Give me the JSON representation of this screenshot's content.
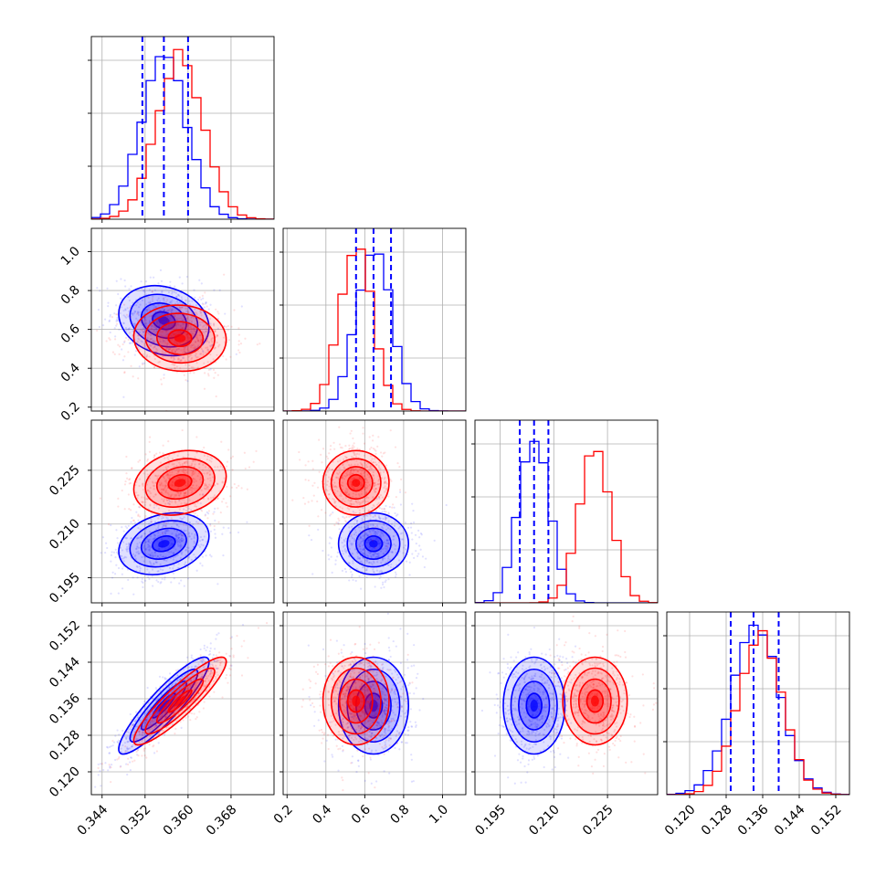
{
  "chart_data": {
    "type": "scatter",
    "plot_kind": "corner",
    "grid": true,
    "colors": {
      "blue": "#0000ff",
      "red": "#ff0000",
      "grid": "#b0b0b0",
      "frame": "#000000"
    },
    "parameters": [
      {
        "ticks": [
          0.344,
          0.352,
          0.36,
          0.368
        ],
        "tick_labels": [
          "0.344",
          "0.352",
          "0.360",
          "0.368"
        ],
        "range": [
          0.342,
          0.376
        ]
      },
      {
        "ticks": [
          0.2,
          0.4,
          0.6,
          0.8,
          1.0
        ],
        "tick_labels": [
          "0.2",
          "0.4",
          "0.6",
          "0.8",
          "1.0"
        ],
        "range": [
          0.18,
          1.12
        ]
      },
      {
        "ticks": [
          0.195,
          0.21,
          0.225
        ],
        "tick_labels": [
          "0.195",
          "0.210",
          "0.225"
        ],
        "range": [
          0.188,
          0.239
        ]
      },
      {
        "ticks": [
          0.12,
          0.128,
          0.136,
          0.144,
          0.152
        ],
        "tick_labels": [
          "0.120",
          "0.128",
          "0.136",
          "0.144",
          "0.152"
        ],
        "range": [
          0.115,
          0.155
        ]
      }
    ],
    "series": [
      {
        "color": "#0000ff",
        "means": [
          0.3555,
          0.645,
          0.2045,
          0.1345
        ],
        "sigmas": [
          0.0042,
          0.09,
          0.0043,
          0.0053
        ],
        "quantiles": [
          [
            0.3515,
            0.3555,
            0.36
          ],
          [
            0.555,
            0.645,
            0.735
          ],
          [
            0.2005,
            0.2045,
            0.2085
          ],
          [
            0.129,
            0.134,
            0.1395
          ]
        ],
        "hist_peak": [
          1.0,
          1.0,
          1.0,
          1.0
        ]
      },
      {
        "color": "#ff0000",
        "means": [
          0.3585,
          0.555,
          0.2215,
          0.1355
        ],
        "sigmas": [
          0.0043,
          0.085,
          0.0045,
          0.0048
        ],
        "hist_peak": [
          1.0,
          0.99,
          0.94,
          0.99
        ]
      }
    ],
    "correlations": [
      {
        "pair": [
          0,
          1
        ],
        "blue": -0.2,
        "red": -0.05
      },
      {
        "pair": [
          0,
          2
        ],
        "blue": 0.25,
        "red": 0.2
      },
      {
        "pair": [
          1,
          2
        ],
        "blue": 0.0,
        "red": 0.0
      },
      {
        "pair": [
          0,
          3
        ],
        "blue": 0.9,
        "red": 0.9
      },
      {
        "pair": [
          1,
          3
        ],
        "blue": 0.0,
        "red": 0.0
      },
      {
        "pair": [
          2,
          3
        ],
        "blue": 0.0,
        "red": 0.0
      }
    ],
    "hist_bins": 20,
    "contour_levels_sigma": [
      0.5,
      1.0,
      1.5,
      2.0
    ],
    "title": "",
    "xlabel": "",
    "ylabel": ""
  }
}
